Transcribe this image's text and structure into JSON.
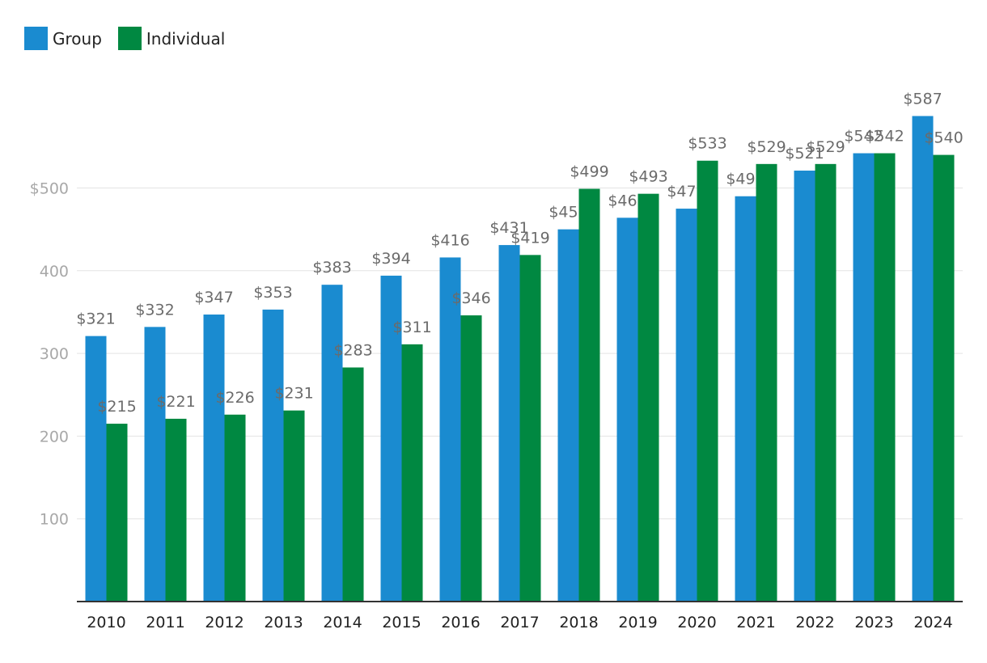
{
  "legend": [
    {
      "name": "Group",
      "color": "#1a8bd0"
    },
    {
      "name": "Individual",
      "color": "#008841"
    }
  ],
  "chart_data": {
    "type": "bar",
    "categories": [
      "2010",
      "2011",
      "2012",
      "2013",
      "2014",
      "2015",
      "2016",
      "2017",
      "2018",
      "2019",
      "2020",
      "2021",
      "2022",
      "2023",
      "2024"
    ],
    "series": [
      {
        "name": "Group",
        "color": "#1a8bd0",
        "values": [
          321,
          332,
          347,
          353,
          383,
          394,
          416,
          431,
          450,
          464,
          475,
          490,
          521,
          542,
          587
        ],
        "labels": [
          "$321",
          "$332",
          "$347",
          "$353",
          "$383",
          "$394",
          "$416",
          "$431",
          "$450",
          "$464",
          "$475",
          "$490",
          "$521",
          "$542",
          "$587"
        ]
      },
      {
        "name": "Individual",
        "color": "#008841",
        "values": [
          215,
          221,
          226,
          231,
          283,
          311,
          346,
          419,
          499,
          493,
          533,
          529,
          529,
          542,
          540
        ],
        "labels": [
          "$215",
          "$221",
          "$226",
          "$231",
          "$283",
          "$311",
          "$346",
          "$419",
          "$499",
          "$493",
          "$533",
          "$529",
          "$529",
          "$542",
          "$540"
        ]
      }
    ],
    "yticks": [
      {
        "value": 100,
        "label": "100"
      },
      {
        "value": 200,
        "label": "200"
      },
      {
        "value": 300,
        "label": "300"
      },
      {
        "value": 400,
        "label": "400"
      },
      {
        "value": 500,
        "label": "$500"
      }
    ],
    "ylim": [
      0,
      600
    ],
    "grid": true,
    "legend_position": "top-left",
    "title": "",
    "xlabel": "",
    "ylabel": ""
  }
}
